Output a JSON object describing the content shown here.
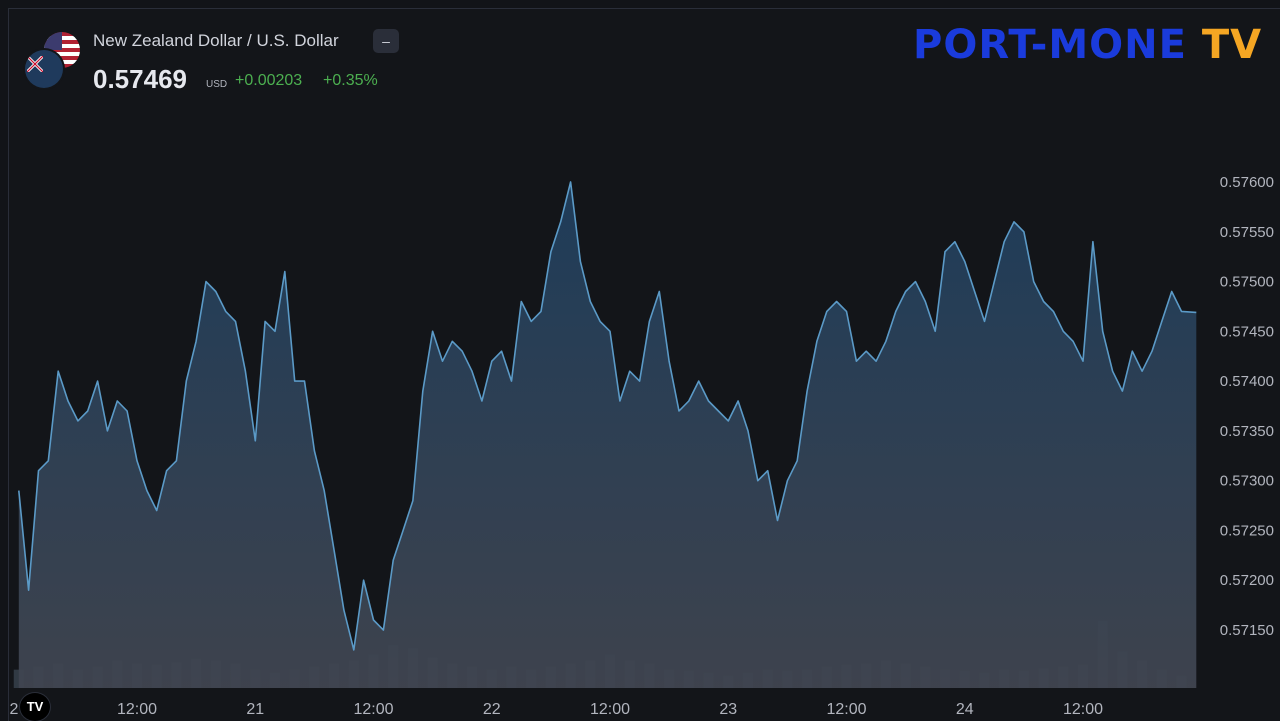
{
  "header": {
    "symbol_name": "New Zealand Dollar / U.S. Dollar",
    "collapse_label": "–",
    "price": "0.57469",
    "currency": "USD",
    "change": "+0.00203",
    "change_percent": "+0.35%"
  },
  "logo": {
    "text_main": "PORT-MONE",
    "text_tv": "TV"
  },
  "colors": {
    "background": "#131519",
    "line": "#5b9ac7",
    "area_top": "#1f3e5c",
    "area_bottom": "#404550",
    "positive": "#4caf50",
    "logo_blue": "#1a3bdc",
    "logo_orange": "#f5a623",
    "volume": "#4a5a68"
  },
  "chart_data": {
    "type": "area",
    "title": "",
    "ylim": [
      0.571,
      0.5765
    ],
    "y_ticks": [
      "0.57600",
      "0.57550",
      "0.57500",
      "0.57450",
      "0.57400",
      "0.57350",
      "0.57300",
      "0.57250",
      "0.57200",
      "0.57150"
    ],
    "x_ticks": [
      "2",
      "12:00",
      "21",
      "12:00",
      "22",
      "12:00",
      "23",
      "12:00",
      "24",
      "12:00"
    ],
    "x_tick_times": [
      0,
      12,
      24,
      36,
      48,
      60,
      72,
      84,
      96,
      108
    ],
    "x_range_hours": [
      0,
      120
    ],
    "series": [
      {
        "x": [
          0,
          1,
          2,
          3,
          4,
          5,
          6,
          7,
          8,
          9,
          10,
          11,
          12,
          13,
          14,
          15,
          16,
          17,
          18,
          19,
          20,
          21,
          22,
          23,
          24,
          25,
          26,
          27,
          28,
          29,
          30,
          31,
          32,
          33,
          34,
          35,
          36,
          37,
          38,
          39,
          40,
          41,
          42,
          43,
          44,
          45,
          46,
          47,
          48,
          49,
          50,
          51,
          52,
          53,
          54,
          55,
          56,
          57,
          58,
          59,
          60,
          61,
          62,
          63,
          64,
          65,
          66,
          67,
          68,
          69,
          70,
          71,
          72,
          73,
          74,
          75,
          76,
          77,
          78,
          79,
          80,
          81,
          82,
          83,
          84,
          85,
          86,
          87,
          88,
          89,
          90,
          91,
          92,
          93,
          94,
          95,
          96,
          97,
          98,
          99,
          100,
          101,
          102,
          103,
          104,
          105,
          106,
          107,
          108,
          109,
          110,
          111,
          112,
          113,
          114,
          115,
          116,
          117,
          118,
          119.5
        ],
        "values": [
          0.5729,
          0.5719,
          0.5731,
          0.5732,
          0.5741,
          0.5738,
          0.5736,
          0.5737,
          0.574,
          0.5735,
          0.5738,
          0.5737,
          0.5732,
          0.5729,
          0.5727,
          0.5731,
          0.5732,
          0.574,
          0.5744,
          0.575,
          0.5749,
          0.5747,
          0.5746,
          0.5741,
          0.5734,
          0.5746,
          0.5745,
          0.5751,
          0.574,
          0.574,
          0.5733,
          0.5729,
          0.5723,
          0.5717,
          0.5713,
          0.572,
          0.5716,
          0.5715,
          0.5722,
          0.5725,
          0.5728,
          0.5739,
          0.5745,
          0.5742,
          0.5744,
          0.5743,
          0.5741,
          0.5738,
          0.5742,
          0.5743,
          0.574,
          0.5748,
          0.5746,
          0.5747,
          0.5753,
          0.5756,
          0.576,
          0.5752,
          0.5748,
          0.5746,
          0.5745,
          0.5738,
          0.5741,
          0.574,
          0.5746,
          0.5749,
          0.5742,
          0.5737,
          0.5738,
          0.574,
          0.5738,
          0.5737,
          0.5736,
          0.5738,
          0.5735,
          0.573,
          0.5731,
          0.5726,
          0.573,
          0.5732,
          0.5739,
          0.5744,
          0.5747,
          0.5748,
          0.5747,
          0.5742,
          0.5743,
          0.5742,
          0.5744,
          0.5747,
          0.5749,
          0.575,
          0.5748,
          0.5745,
          0.5753,
          0.5754,
          0.5752,
          0.5749,
          0.5746,
          0.575,
          0.5754,
          0.5756,
          0.5755,
          0.575,
          0.5748,
          0.5747,
          0.5745,
          0.5744,
          0.5742,
          0.5754,
          0.5745,
          0.5741,
          0.5739,
          0.5743,
          0.5741,
          0.5743,
          0.5746,
          0.5749,
          0.5747,
          0.57469
        ]
      }
    ],
    "volume": {
      "x": [
        0,
        2,
        4,
        6,
        8,
        10,
        12,
        14,
        16,
        18,
        20,
        22,
        24,
        26,
        28,
        30,
        32,
        34,
        36,
        38,
        40,
        42,
        44,
        46,
        48,
        50,
        52,
        54,
        56,
        58,
        60,
        62,
        64,
        66,
        68,
        70,
        72,
        74,
        76,
        78,
        80,
        82,
        84,
        86,
        88,
        90,
        92,
        94,
        96,
        98,
        100,
        102,
        104,
        106,
        108,
        110,
        112,
        114,
        116,
        118
      ],
      "values": [
        30,
        35,
        40,
        30,
        35,
        45,
        40,
        38,
        42,
        48,
        45,
        40,
        30,
        25,
        30,
        35,
        40,
        45,
        55,
        70,
        65,
        50,
        40,
        35,
        30,
        35,
        30,
        35,
        40,
        45,
        55,
        45,
        40,
        30,
        28,
        25,
        20,
        25,
        30,
        28,
        30,
        35,
        38,
        40,
        45,
        40,
        35,
        30,
        28,
        25,
        30,
        28,
        32,
        35,
        38,
        110,
        60,
        45,
        30,
        20
      ]
    }
  }
}
